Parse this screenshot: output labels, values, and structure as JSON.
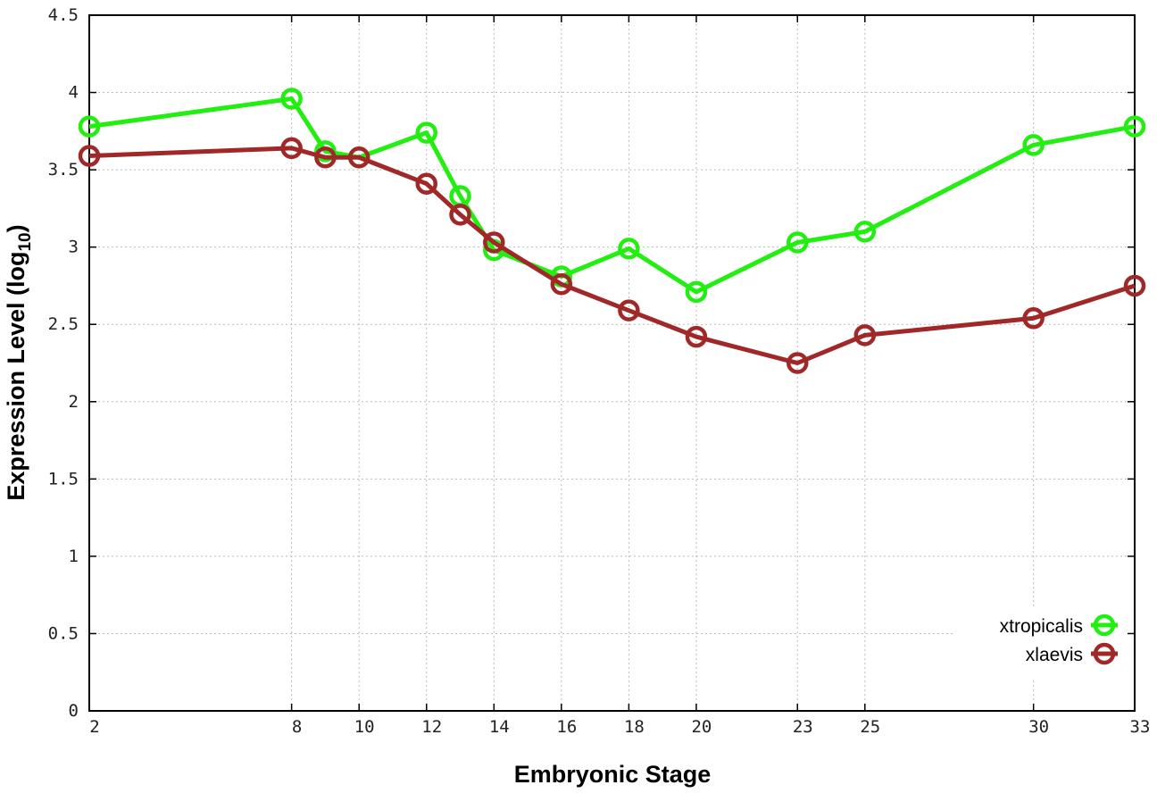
{
  "chart_data": {
    "type": "line",
    "title": "",
    "xlabel": "Embryonic Stage",
    "ylabel": "Expression Level (log",
    "ylabel_subscript": "10",
    "ylabel_suffix": ")",
    "xlim": [
      2,
      33
    ],
    "ylim": [
      0,
      4.5
    ],
    "x_tick_labels": [
      "2",
      "8",
      "10",
      "12",
      "14",
      "16",
      "18",
      "20",
      "23",
      "25",
      "30",
      "33"
    ],
    "y_tick_labels": [
      "0",
      "0.5",
      "1",
      "1.5",
      "2",
      "2.5",
      "3",
      "3.5",
      "4",
      "4.5"
    ],
    "grid": true,
    "legend_position": "bottom-right",
    "x": [
      2,
      8,
      9,
      10,
      12,
      13,
      14,
      16,
      18,
      20,
      23,
      25,
      30,
      33
    ],
    "series": [
      {
        "name": "xtropicalis",
        "color": "#22ee11",
        "values": [
          3.78,
          3.96,
          3.62,
          3.58,
          3.74,
          3.33,
          2.98,
          2.81,
          2.99,
          2.71,
          3.03,
          3.1,
          3.66,
          3.78
        ]
      },
      {
        "name": "xlaevis",
        "color": "#a02828",
        "values": [
          3.59,
          3.64,
          3.58,
          3.58,
          3.41,
          3.21,
          3.03,
          2.76,
          2.59,
          2.42,
          2.25,
          2.43,
          2.54,
          2.75
        ]
      }
    ]
  }
}
